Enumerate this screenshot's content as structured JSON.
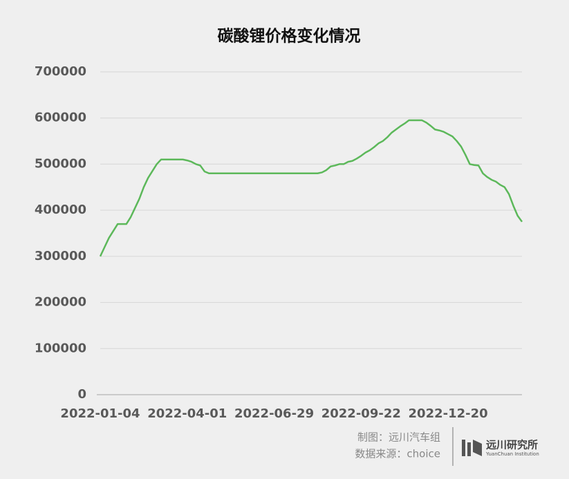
{
  "chart_data": {
    "type": "line",
    "title": "碳酸锂价格变化情况",
    "categories": [
      "2022-01-04",
      null,
      null,
      null,
      null,
      null,
      null,
      null,
      null,
      null,
      null,
      null,
      null,
      null,
      null,
      null,
      null,
      null,
      null,
      null,
      "2022-04-01",
      null,
      null,
      null,
      null,
      null,
      null,
      null,
      null,
      null,
      null,
      null,
      null,
      null,
      null,
      null,
      null,
      null,
      null,
      null,
      "2022-06-29",
      null,
      null,
      null,
      null,
      null,
      null,
      null,
      null,
      null,
      null,
      null,
      null,
      null,
      null,
      null,
      null,
      null,
      null,
      null,
      "2022-09-22",
      null,
      null,
      null,
      null,
      null,
      null,
      null,
      null,
      null,
      null,
      null,
      null,
      null,
      null,
      null,
      null,
      null,
      null,
      null,
      "2022-12-20",
      null,
      null,
      null,
      null,
      null,
      null,
      null,
      null,
      null,
      null,
      null,
      null,
      null,
      null,
      null,
      null,
      null
    ],
    "values": [
      300000,
      320000,
      340000,
      355000,
      370000,
      370000,
      370000,
      385000,
      405000,
      425000,
      450000,
      470000,
      485000,
      500000,
      510000,
      510000,
      510000,
      510000,
      510000,
      510000,
      508000,
      505000,
      500000,
      497000,
      484000,
      480000,
      480000,
      480000,
      480000,
      480000,
      480000,
      480000,
      480000,
      480000,
      480000,
      480000,
      480000,
      480000,
      480000,
      480000,
      480000,
      480000,
      480000,
      480000,
      480000,
      480000,
      480000,
      480000,
      480000,
      480000,
      480000,
      482000,
      487000,
      495000,
      497000,
      500000,
      500000,
      505000,
      507000,
      512000,
      518000,
      525000,
      530000,
      537000,
      545000,
      550000,
      558000,
      568000,
      575000,
      582000,
      588000,
      595000,
      595000,
      595000,
      595000,
      590000,
      583000,
      575000,
      573000,
      570000,
      565000,
      560000,
      550000,
      538000,
      520000,
      500000,
      498000,
      497000,
      480000,
      472000,
      466000,
      462000,
      455000,
      450000,
      435000,
      410000,
      388000,
      375000
    ],
    "color": "#5cb85a",
    "ylim": [
      0,
      700000
    ],
    "yticks": [
      0,
      100000,
      200000,
      300000,
      400000,
      500000,
      600000,
      700000
    ],
    "grid": true
  },
  "footer": {
    "credit": "制图：远川汽车组",
    "source": "数据来源：choice",
    "brand": "远川研究所",
    "brand_en": "YuanChuan Institution"
  }
}
